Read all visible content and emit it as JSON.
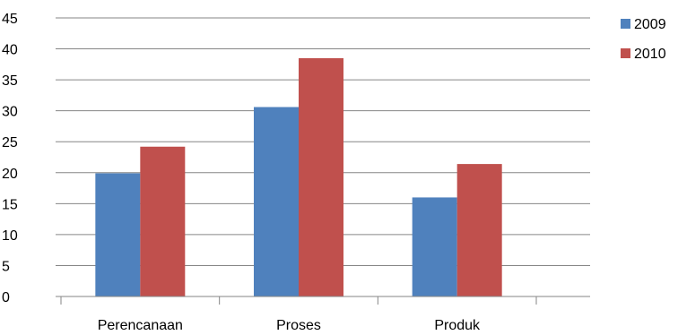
{
  "chart_data": {
    "type": "bar",
    "categories": [
      "Perencanaan",
      "Proses",
      "Produk"
    ],
    "series": [
      {
        "name": "2009",
        "values": [
          19.9,
          30.6,
          16.0
        ],
        "color": "#4F81BD"
      },
      {
        "name": "2010",
        "values": [
          24.2,
          38.5,
          21.4
        ],
        "color": "#C0504D"
      }
    ],
    "ylim": [
      0,
      45
    ],
    "yticks": [
      "0",
      "5",
      "10",
      "15",
      "20",
      "25",
      "30",
      "35",
      "40",
      "45"
    ],
    "grid": true,
    "legend_position": "right"
  }
}
